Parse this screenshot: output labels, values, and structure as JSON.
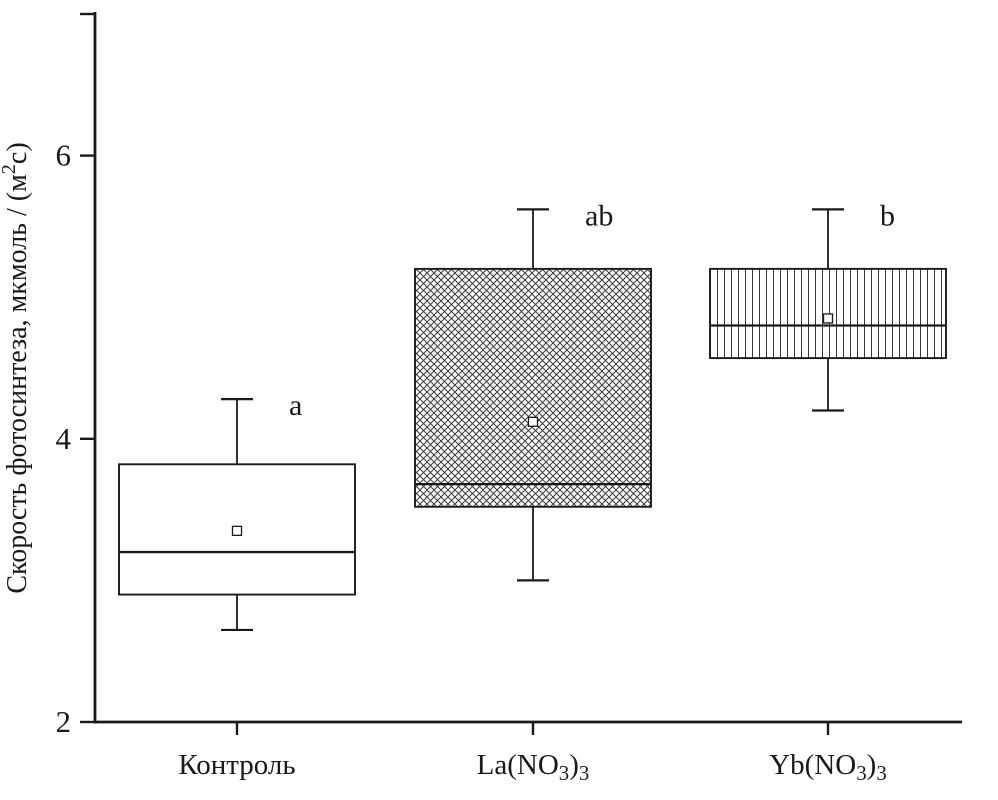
{
  "figure": {
    "background": "#ffffff",
    "ink": "#1a1a1a"
  },
  "chart_data": {
    "type": "box",
    "title": "",
    "xlabel": "",
    "ylabel": "Скорость фотосинтеза, мкмоль / (м^{2}с)",
    "ylim": [
      2,
      7
    ],
    "yticks_labeled": [
      2,
      4,
      6
    ],
    "yticks_unlabeled": [
      7
    ],
    "grid": false,
    "legend": "none",
    "categories": [
      "Контроль",
      "La(NO_{3})_{3}",
      "Yb(NO_{3})_{3}"
    ],
    "series": [
      {
        "name": "Kontrol",
        "whisker_low": 2.65,
        "q1": 2.9,
        "median": 3.2,
        "mean": 3.35,
        "q3": 3.82,
        "whisker_high": 4.28,
        "sig_letter": "a",
        "box_pattern": "none"
      },
      {
        "name": "La(NO3)3",
        "whisker_low": 3.0,
        "q1": 3.52,
        "median": 3.68,
        "mean": 4.12,
        "q3": 5.2,
        "whisker_high": 5.62,
        "sig_letter": "ab",
        "box_pattern": "crosshatch"
      },
      {
        "name": "Yb(NO3)3",
        "whisker_low": 4.2,
        "q1": 4.57,
        "median": 4.8,
        "mean": 4.85,
        "q3": 5.2,
        "whisker_high": 5.62,
        "sig_letter": "b",
        "box_pattern": "vertical-lines"
      }
    ]
  }
}
